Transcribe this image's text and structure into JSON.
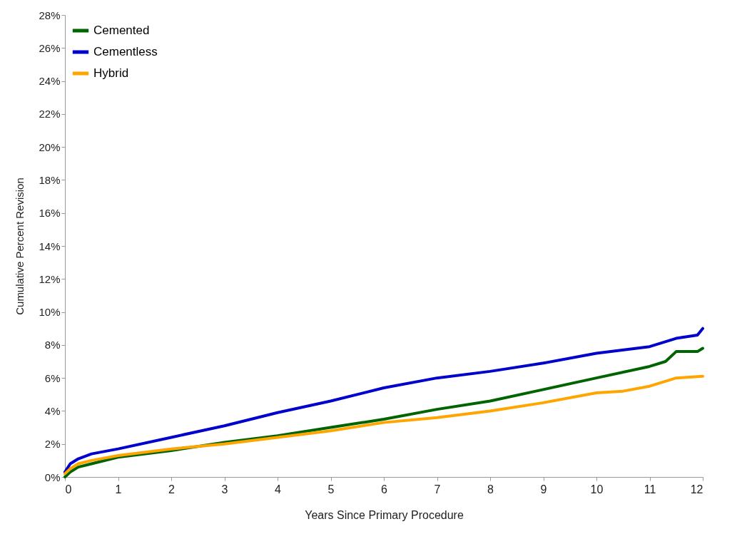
{
  "chart_data": {
    "type": "line",
    "xlabel": "Years Since Primary Procedure",
    "ylabel": "Cumulative Percent Revision",
    "xlim": [
      0,
      12
    ],
    "xticks": [
      0,
      1,
      2,
      3,
      4,
      5,
      6,
      7,
      8,
      9,
      10,
      11,
      12
    ],
    "ylim": [
      0,
      28
    ],
    "yticks": [
      {
        "value": 0,
        "label": "0%"
      },
      {
        "value": 2,
        "label": "2%"
      },
      {
        "value": 4,
        "label": "4%"
      },
      {
        "value": 6,
        "label": "6%"
      },
      {
        "value": 8,
        "label": "8%"
      },
      {
        "value": 10,
        "label": "10%"
      },
      {
        "value": 12,
        "label": "12%"
      },
      {
        "value": 14,
        "label": "14%"
      },
      {
        "value": 16,
        "label": "16%"
      },
      {
        "value": 18,
        "label": "18%"
      },
      {
        "value": 20,
        "label": "20%"
      },
      {
        "value": 22,
        "label": "22%"
      },
      {
        "value": 24,
        "label": "24%"
      },
      {
        "value": 26,
        "label": "26%"
      },
      {
        "value": 28,
        "label": "28%"
      }
    ],
    "grid": false,
    "legend": "top left",
    "marker": "none",
    "line_style": "solid",
    "series": [
      {
        "name": "Cemented",
        "color": "#006400",
        "x": [
          0,
          0.1,
          0.25,
          0.5,
          1,
          2,
          3,
          4,
          5,
          6,
          7,
          8,
          9,
          10,
          11,
          11.3,
          11.5,
          11.9,
          12
        ],
        "values": [
          0,
          0.3,
          0.6,
          0.8,
          1.2,
          1.6,
          2.1,
          2.5,
          3.0,
          3.5,
          4.1,
          4.6,
          5.3,
          6.0,
          6.7,
          7.0,
          7.6,
          7.6,
          7.8
        ]
      },
      {
        "name": "Cementless",
        "color": "#0000cc",
        "x": [
          0,
          0.1,
          0.25,
          0.5,
          1,
          2,
          3,
          4,
          5,
          6,
          7,
          8,
          9,
          10,
          11,
          11.5,
          11.9,
          12
        ],
        "values": [
          0.3,
          0.8,
          1.1,
          1.4,
          1.7,
          2.4,
          3.1,
          3.9,
          4.6,
          5.4,
          6.0,
          6.4,
          6.9,
          7.5,
          7.9,
          8.4,
          8.6,
          9.0
        ]
      },
      {
        "name": "Hybrid",
        "color": "#ffa500",
        "x": [
          0,
          0.1,
          0.25,
          0.5,
          1,
          2,
          3,
          4,
          5,
          6,
          7,
          8,
          9,
          10,
          10.5,
          11,
          11.5,
          12
        ],
        "values": [
          0.2,
          0.5,
          0.8,
          1.0,
          1.3,
          1.7,
          2.0,
          2.4,
          2.8,
          3.3,
          3.6,
          4.0,
          4.5,
          5.1,
          5.2,
          5.5,
          6.0,
          6.1
        ]
      }
    ]
  }
}
